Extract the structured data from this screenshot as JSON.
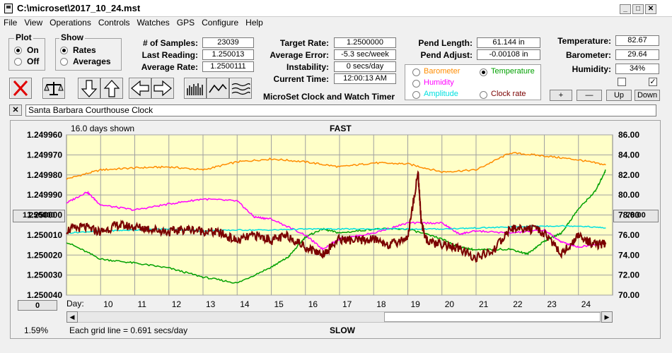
{
  "window": {
    "title": "C:\\microset\\2017_10_24.mst"
  },
  "menu": [
    "File",
    "View",
    "Operations",
    "Controls",
    "Watches",
    "GPS",
    "Configure",
    "Help"
  ],
  "plot_group": {
    "title": "Plot",
    "on": "On",
    "off": "Off"
  },
  "show_group": {
    "title": "Show",
    "rates": "Rates",
    "averages": "Averages"
  },
  "stats": {
    "samples_label": "# of Samples:",
    "samples": "23039",
    "last_reading_label": "Last Reading:",
    "last_reading": "1.250013",
    "average_rate_label": "Average Rate:",
    "average_rate": "1.2500111",
    "target_rate_label": "Target Rate:",
    "target_rate": "1.2500000",
    "average_error_label": "Average Error:",
    "average_error": "-5.3 sec/week",
    "instability_label": "Instability:",
    "instability": "0 secs/day",
    "current_time_label": "Current Time:",
    "current_time": "12:00:13 AM",
    "pend_length_label": "Pend Length:",
    "pend_length": "61.144 in",
    "pend_adjust_label": "Pend Adjust:",
    "pend_adjust": "-0.00108 in",
    "temperature_label": "Temperature:",
    "temperature": "82.67",
    "barometer_label": "Barometer:",
    "barometer": "29.64",
    "humidity_label": "Humidity:",
    "humidity": "34%"
  },
  "app_title": "MicroSet Clock and Watch Timer",
  "sensor_select": {
    "barometer": "Barometer",
    "temperature": "Temperature",
    "humidity": "Humidity",
    "amplitude": "Amplitude",
    "clock_rate": "Clock rate"
  },
  "adjust_buttons": {
    "plus": "+",
    "minus": "—",
    "up": "Up",
    "down": "Down"
  },
  "clock_name": "Santa Barbara Courthouse Clock",
  "colors": {
    "barometer": "#ff8c00",
    "temperature": "#00a000",
    "humidity": "#ff00ff",
    "amplitude": "#00e0e0",
    "clock_rate": "#7a0000",
    "plot_bg": "#ffffc8"
  },
  "chart": {
    "days_shown": "16.0 days shown",
    "fast": "FAST",
    "slow": "SLOW",
    "grid_note": "Each grid line = 0.691 secs/day",
    "percent": "1.59%",
    "day_label": "Day:",
    "left_button": "1.250000",
    "right_button": "78.00",
    "zero_button": "0"
  },
  "chart_data": {
    "type": "line",
    "y_left_ticks": [
      "1.249960",
      "1.249970",
      "1.249980",
      "1.249990",
      "1.250000",
      "1.250010",
      "1.250020",
      "1.250030",
      "1.250040"
    ],
    "y_right_ticks": [
      "86.00",
      "84.00",
      "82.00",
      "80.00",
      "78.00",
      "76.00",
      "74.00",
      "72.00",
      "70.00"
    ],
    "x_ticks": [
      "10",
      "11",
      "12",
      "13",
      "14",
      "15",
      "16",
      "17",
      "18",
      "19",
      "20",
      "21",
      "22",
      "23",
      "24"
    ],
    "xlim": [
      9,
      25
    ],
    "y_right_lim": [
      70,
      86
    ],
    "series": [
      {
        "name": "Barometer",
        "color": "#ff8c00",
        "x": [
          9,
          10,
          11,
          12,
          13,
          14,
          15,
          16,
          17,
          18,
          19,
          20,
          21,
          22,
          23,
          24,
          24.8
        ],
        "y": [
          81.6,
          82.5,
          82.7,
          82.8,
          82.5,
          83.3,
          83.6,
          83.3,
          82.8,
          83.2,
          83.1,
          82.3,
          82.5,
          84.2,
          83.9,
          83.5,
          83.0
        ]
      },
      {
        "name": "Temperature",
        "color": "#00a000",
        "x": [
          9,
          10,
          11,
          12,
          13,
          14,
          15,
          15.5,
          16,
          16.5,
          17,
          18,
          19,
          20,
          20.5,
          21,
          22,
          22.5,
          23,
          23.5,
          24,
          24.5,
          24.8
        ],
        "y": [
          75.3,
          73.6,
          73.2,
          72.7,
          71.8,
          71.2,
          72.8,
          73.8,
          75.8,
          76.6,
          76.2,
          76.6,
          76.6,
          75.6,
          74.8,
          74.5,
          74.6,
          74.1,
          75.4,
          76.2,
          78.6,
          80.4,
          82.5
        ]
      },
      {
        "name": "Humidity",
        "color": "#ff00ff",
        "x": [
          9,
          9.6,
          10,
          11,
          12,
          13,
          14,
          14.5,
          15,
          16,
          16.5,
          17,
          18,
          19,
          20,
          20.5,
          21,
          22,
          23,
          23.5,
          24,
          24.8
        ],
        "y": [
          79.2,
          80.3,
          79.0,
          78.5,
          79.1,
          79.6,
          79.4,
          77.8,
          77.6,
          76.0,
          74.6,
          75.6,
          76.2,
          77.2,
          77.2,
          76.1,
          76.4,
          76.2,
          76.5,
          75.3,
          74.8,
          75.2
        ]
      },
      {
        "name": "Amplitude",
        "color": "#00e0e0",
        "x": [
          9,
          10,
          11,
          12,
          13,
          14,
          15,
          16,
          17,
          18,
          19,
          20,
          21,
          22,
          23,
          24,
          24.8
        ],
        "y": [
          76.2,
          76.4,
          76.5,
          76.6,
          76.4,
          76.5,
          76.5,
          76.6,
          76.6,
          76.6,
          76.6,
          76.6,
          76.7,
          76.8,
          76.9,
          76.9,
          76.7
        ]
      },
      {
        "name": "Clock rate",
        "color": "#7a0000",
        "x": [
          9,
          9.5,
          10,
          10.5,
          11,
          11.5,
          12,
          12.5,
          13,
          13.5,
          14,
          14.5,
          15,
          15.5,
          16,
          16.5,
          17,
          17.5,
          18,
          18.5,
          19,
          19.3,
          19.4,
          19.6,
          20,
          20.5,
          21,
          21.5,
          22,
          22.5,
          23,
          23.5,
          24,
          24.5,
          24.8
        ],
        "y": [
          76.5,
          76.8,
          76.3,
          77.0,
          76.8,
          76.6,
          76.3,
          76.6,
          76.4,
          76.2,
          75.4,
          76.0,
          75.5,
          75.9,
          74.8,
          74.1,
          75.6,
          75.4,
          75.6,
          75.0,
          75.8,
          82.3,
          77.0,
          75.2,
          75.1,
          74.6,
          73.7,
          74.4,
          76.6,
          76.7,
          76.2,
          74.1,
          75.9,
          75.0,
          75.1
        ]
      }
    ]
  }
}
